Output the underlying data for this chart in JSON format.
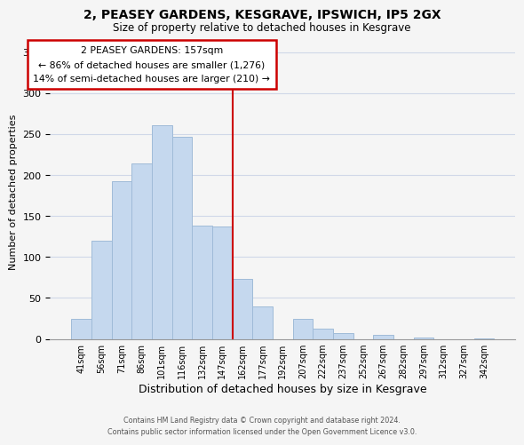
{
  "title": "2, PEASEY GARDENS, KESGRAVE, IPSWICH, IP5 2GX",
  "subtitle": "Size of property relative to detached houses in Kesgrave",
  "xlabel": "Distribution of detached houses by size in Kesgrave",
  "ylabel": "Number of detached properties",
  "bar_labels": [
    "41sqm",
    "56sqm",
    "71sqm",
    "86sqm",
    "101sqm",
    "116sqm",
    "132sqm",
    "147sqm",
    "162sqm",
    "177sqm",
    "192sqm",
    "207sqm",
    "222sqm",
    "237sqm",
    "252sqm",
    "267sqm",
    "282sqm",
    "297sqm",
    "312sqm",
    "327sqm",
    "342sqm"
  ],
  "bar_values": [
    25,
    120,
    193,
    214,
    261,
    247,
    138,
    137,
    73,
    40,
    0,
    25,
    13,
    7,
    0,
    5,
    0,
    2,
    0,
    0,
    1
  ],
  "bar_color": "#c5d8ee",
  "bar_edge_color": "#a0bbd8",
  "vline_x_index": 7.5,
  "vline_color": "#cc0000",
  "annotation_title": "2 PEASEY GARDENS: 157sqm",
  "annotation_line1": "← 86% of detached houses are smaller (1,276)",
  "annotation_line2": "14% of semi-detached houses are larger (210) →",
  "annotation_box_color": "#ffffff",
  "annotation_box_edge": "#cc0000",
  "ylim": [
    0,
    360
  ],
  "yticks": [
    0,
    50,
    100,
    150,
    200,
    250,
    300,
    350
  ],
  "footer_line1": "Contains HM Land Registry data © Crown copyright and database right 2024.",
  "footer_line2": "Contains public sector information licensed under the Open Government Licence v3.0.",
  "background_color": "#f5f5f5",
  "grid_color": "#d0d8e8"
}
